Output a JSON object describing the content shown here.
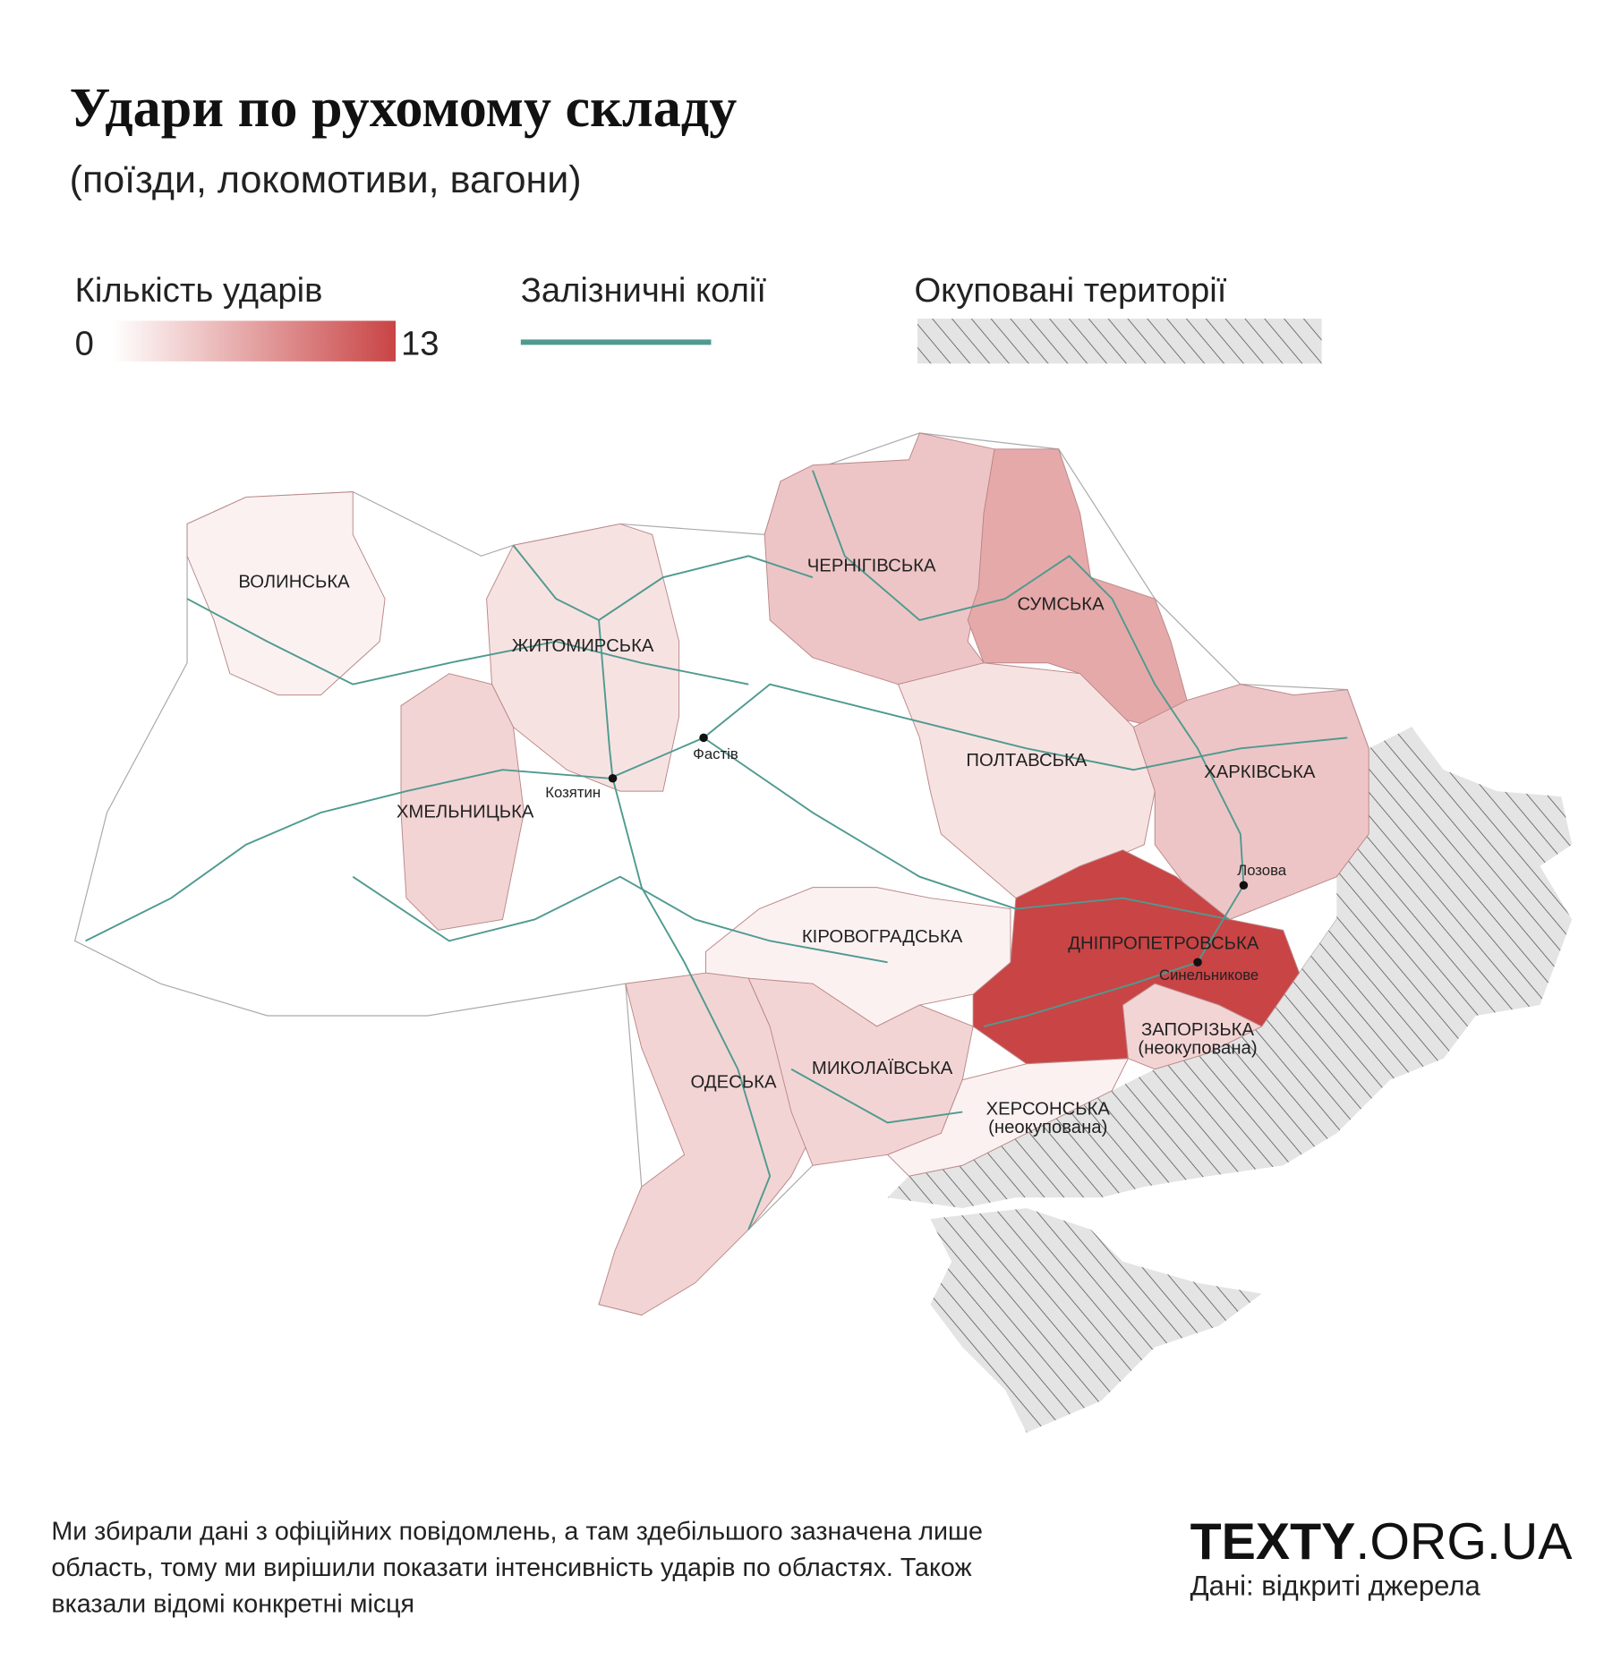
{
  "title": "Удари по рухомому складу",
  "subtitle": "(поїзди, локомотиви, вагони)",
  "legend": {
    "scale_title": "Кількість ударів",
    "min": 0,
    "max": 13,
    "colors": [
      "#ffffff",
      "#c94445"
    ],
    "rail_title": "Залізничні колії",
    "rail_color": "#4f9a90",
    "occupied_title": "Окуповані території"
  },
  "regions": [
    {
      "name": "ВОЛИНСЬКА",
      "value": 1
    },
    {
      "name": "ЖИТОМИРСЬКА",
      "value": 2
    },
    {
      "name": "ХМЕЛЬНИЦЬКА",
      "value": 3
    },
    {
      "name": "ЧЕРНІГІВСЬКА",
      "value": 4
    },
    {
      "name": "СУМСЬКА",
      "value": 6
    },
    {
      "name": "ПОЛТАВСЬКА",
      "value": 2
    },
    {
      "name": "ХАРКІВСЬКА",
      "value": 4
    },
    {
      "name": "ДНІПРОПЕТРОВСЬКА",
      "value": 13
    },
    {
      "name": "ЗАПОРІЗЬКА",
      "note": "(неокупована)",
      "value": 3
    },
    {
      "name": "КІРОВОГРАДСЬКА",
      "value": 1
    },
    {
      "name": "ОДЕСЬКА",
      "value": 3
    },
    {
      "name": "МИКОЛАЇВСЬКА",
      "value": 3
    },
    {
      "name": "ХЕРСОНСЬКА",
      "note": "(неокупована)",
      "value": 1
    }
  ],
  "cities": [
    {
      "name": "Фастів"
    },
    {
      "name": "Козятин"
    },
    {
      "name": "Лозова"
    },
    {
      "name": "Синельникове"
    }
  ],
  "footer": {
    "note_lines": [
      "Ми збирали дані з офіційних повідомлень, а там здебільшого зазначена лише",
      "область, тому ми вирішили показати інтенсивність ударів по областях. Також",
      "вказали відомі конкретні місця"
    ],
    "brand": "TEXTY",
    "domain": ".ORG.UA",
    "source": "Дані: відкриті джерела"
  }
}
